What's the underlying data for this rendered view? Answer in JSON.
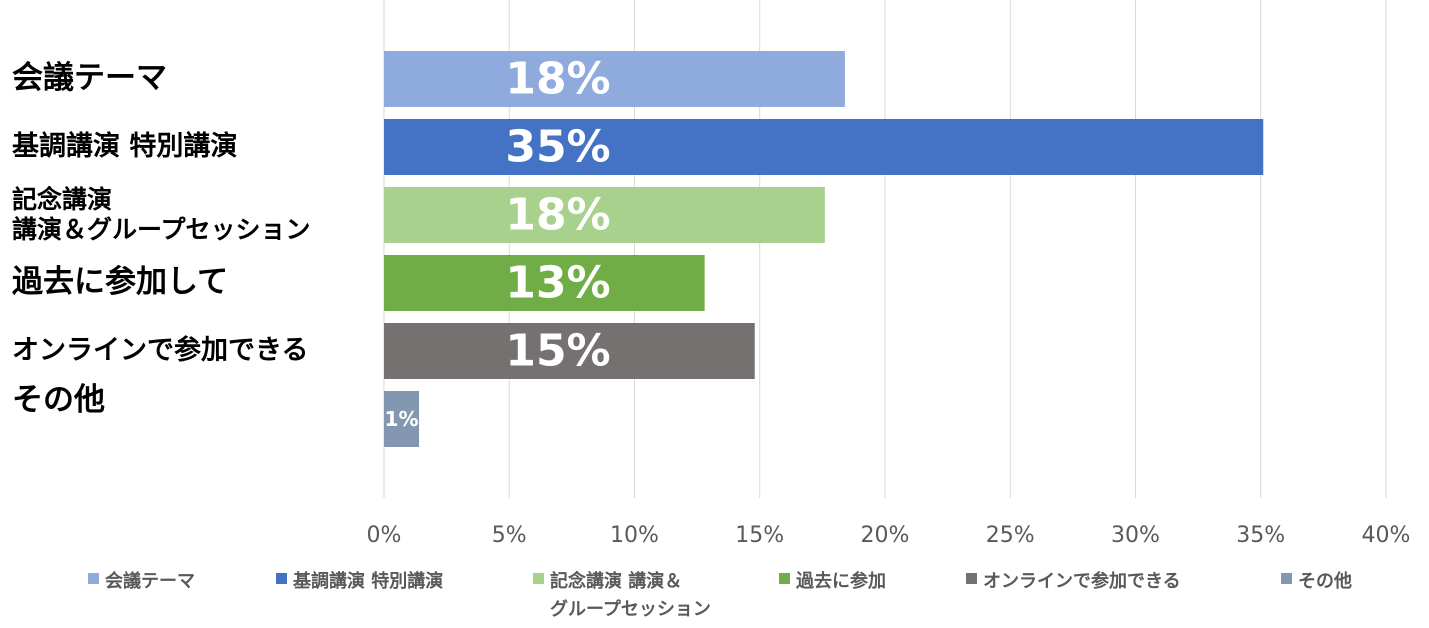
{
  "chart_data": {
    "type": "bar",
    "orientation": "horizontal",
    "categories": [
      "会議テーマ",
      "基調講演 特別講演",
      "記念講演\n講演＆グループセッション",
      "過去に参加して",
      "オンラインで参加できる",
      "その他"
    ],
    "values": [
      18.4,
      35.1,
      17.6,
      12.8,
      14.8,
      1.4
    ],
    "data_labels": [
      "18%",
      "35%",
      "18%",
      "13%",
      "15%",
      "1%"
    ],
    "colors": [
      "#8faadc",
      "#4472c4",
      "#a9d18e",
      "#70ad47",
      "#767171",
      "#8497b0"
    ],
    "xlim": [
      0,
      40
    ],
    "x_ticks": [
      "0%",
      "5%",
      "10%",
      "15%",
      "20%",
      "25%",
      "30%",
      "35%",
      "40%"
    ],
    "grid": true,
    "legend_position": "bottom",
    "legend": [
      "会議テーマ",
      "基調講演 特別講演",
      "記念講演 講演＆\nグループセッション",
      "過去に参加",
      "オンラインで参加できる",
      "その他"
    ],
    "title": "",
    "xlabel": "",
    "ylabel": ""
  }
}
